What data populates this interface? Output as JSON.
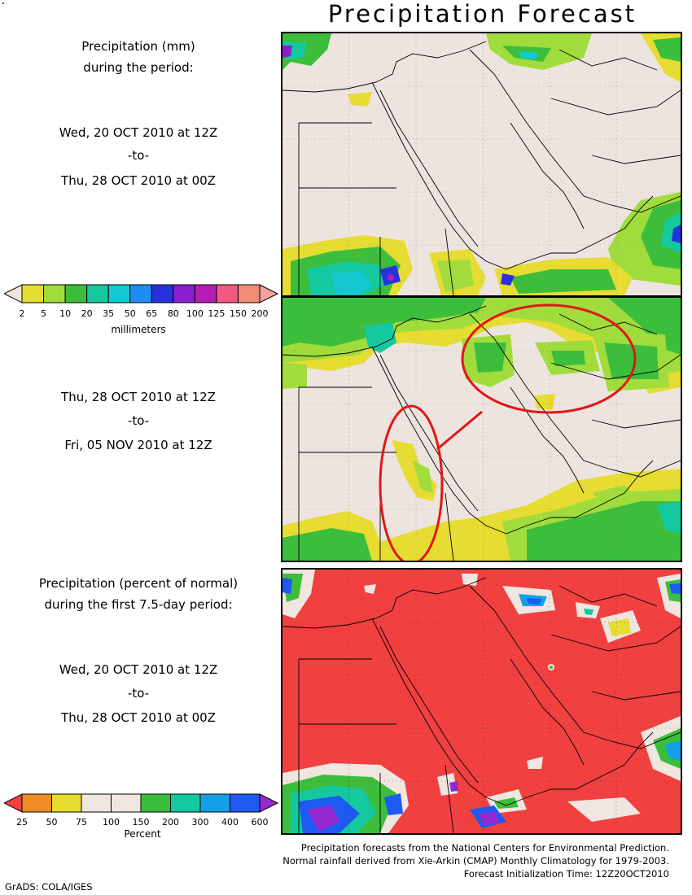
{
  "title": "Precipitation Forecast",
  "panel1": {
    "heading": [
      "Precipitation (mm)",
      "during the period:"
    ],
    "from": "Wed, 20 OCT 2010 at 12Z",
    "sep": "-to-",
    "to": "Thu, 28 OCT 2010 at 00Z"
  },
  "mm_legend": {
    "ticks": [
      "2",
      "5",
      "10",
      "20",
      "35",
      "50",
      "65",
      "80",
      "100",
      "125",
      "150",
      "200"
    ],
    "colors": [
      "#f0e6e0",
      "#e6dc32",
      "#a0dc3c",
      "#3cbe3c",
      "#14c8a0",
      "#14c8d2",
      "#1e8cf0",
      "#2832dc",
      "#8c1ed2",
      "#b41eb4",
      "#f05a82",
      "#f08c78",
      "#f0a0a0"
    ],
    "unit": "millimeters"
  },
  "panel2": {
    "from": "Thu, 28 OCT 2010 at 12Z",
    "sep": "-to-",
    "to": "Fri, 05 NOV 2010 at 12Z"
  },
  "panel3": {
    "heading": [
      "Precipitation (percent of normal)",
      "during the first 7.5-day period:"
    ],
    "from": "Wed, 20 OCT 2010 at 12Z",
    "sep": "-to-",
    "to": "Thu, 28 OCT 2010 at 00Z"
  },
  "pct_legend": {
    "ticks": [
      "25",
      "50",
      "75",
      "100",
      "150",
      "200",
      "300",
      "400",
      "600"
    ],
    "colors": [
      "#f04040",
      "#f08c28",
      "#e6dc32",
      "#f0e6e0",
      "#f0e6e0",
      "#3cbe3c",
      "#14c8a0",
      "#14a0e6",
      "#1e5af0",
      "#9628d2"
    ],
    "unit": "Percent"
  },
  "footer": [
    "Precipitation forecasts from the National Centers for Environmental Prediction.",
    "Normal rainfall derived from Xie-Arkin (CMAP) Monthly Climatology for 1979-2003.",
    "Forecast Initialization Time: 12Z20OCT2010"
  ],
  "credit": "GrADS: COLA/IGES",
  "colors": {
    "land": "#ede4df",
    "deficit": "#f04040",
    "annotation": "#e01818"
  }
}
